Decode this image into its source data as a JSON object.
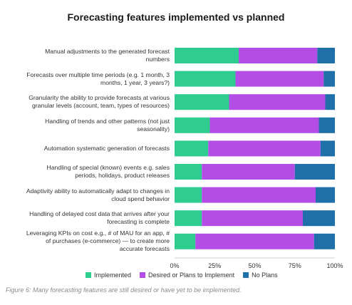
{
  "chart_data": {
    "type": "bar",
    "orientation": "horizontal-stacked-percent",
    "title": "Forecasting features implemented vs planned",
    "xlabel": "",
    "ylabel": "",
    "xlim": [
      0,
      100
    ],
    "ticks": [
      "0%",
      "25%",
      "50%",
      "75%",
      "100%"
    ],
    "grid": false,
    "legend_position": "bottom",
    "categories": [
      "Manual adjustments to the generated forecast numbers",
      "Forecasts over multiple time periods (e.g. 1 month, 3 months, 1 year, 3 years?)",
      "Granularity the ability to provide forecasts at various granular levels (account, team, types of resources)",
      "Handling of trends and other patterns (not just seasonality)",
      "Automation systematic generation of forecasts",
      "Handling of special (known) events e.g. sales periods, holidays, product releases",
      "Adaptivity ability to automatically adapt to changes in cloud spend behavior",
      "Handling of delayed cost data that arrives after your forecasting is complete",
      "Leveraging KPIs on cost e.g., # of MAU for an app, # of purchases (e-commerce) — to create more accurate forecasts"
    ],
    "series": [
      {
        "name": "Implemented",
        "color": "#2ecc8f",
        "values": [
          40,
          38,
          34,
          22,
          21,
          17,
          17,
          17,
          13
        ]
      },
      {
        "name": "Desired or Plans to Implement",
        "color": "#b34de6",
        "values": [
          49,
          55,
          60,
          68,
          70,
          58,
          71,
          63,
          74
        ]
      },
      {
        "name": "No Plans",
        "color": "#1f6fa8",
        "values": [
          11,
          7,
          6,
          10,
          9,
          25,
          12,
          20,
          13
        ]
      }
    ]
  },
  "caption": "Figure 6: Many forecasting features are still desired or have yet to be implemented."
}
